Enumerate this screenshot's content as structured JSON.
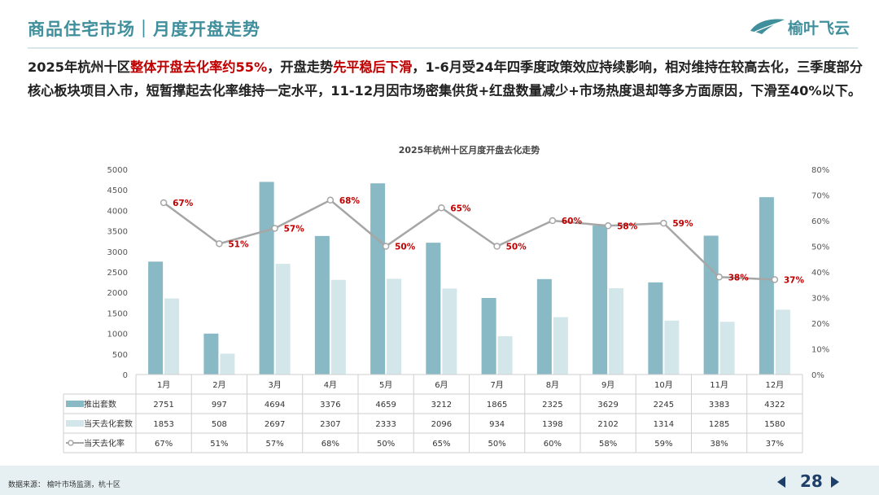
{
  "header": {
    "title": "商品住宅市场｜月度开盘走势",
    "logo_text": "榆叶飞云"
  },
  "summary": {
    "part1": "2025年杭州十区",
    "highlight1": "整体开盘去化率约55%",
    "part2": "，开盘走势",
    "highlight2": "先平稳后下滑",
    "part3": "，1-6月受24年四季度政策效应持续影响，相对维持在较高去化，三季度部分核心板块项目入市，短暂撑起去化率维持一定水平，11-12月因市场密集供货+红盘数量减少+市场热度退却等多方面原因，下滑至40%以下。"
  },
  "colors": {
    "accent": "#3f8f9c",
    "bar_supply": "#88b9c4",
    "bar_sold": "#d3e6ea",
    "line": "#a6a6a6",
    "label_red": "#c00000"
  },
  "chart_data": {
    "type": "bar",
    "title": "2025年杭州十区月度开盘去化走势",
    "categories": [
      "1月",
      "2月",
      "3月",
      "4月",
      "5月",
      "6月",
      "7月",
      "8月",
      "9月",
      "10月",
      "11月",
      "12月"
    ],
    "series": [
      {
        "name": "推出套数",
        "kind": "bar",
        "axis": "left",
        "values": [
          2751,
          997,
          4694,
          3376,
          4659,
          3212,
          1865,
          2325,
          3629,
          2245,
          3383,
          4322
        ]
      },
      {
        "name": "当天去化套数",
        "kind": "bar",
        "axis": "left",
        "values": [
          1853,
          508,
          2697,
          2307,
          2333,
          2096,
          934,
          1398,
          2102,
          1314,
          1285,
          1580
        ]
      },
      {
        "name": "当天去化率",
        "kind": "line",
        "axis": "right",
        "values": [
          67,
          51,
          57,
          68,
          50,
          65,
          50,
          60,
          58,
          59,
          38,
          37
        ],
        "labels": [
          "67%",
          "51%",
          "57%",
          "68%",
          "50%",
          "65%",
          "50%",
          "60%",
          "58%",
          "59%",
          "38%",
          "37%"
        ]
      }
    ],
    "ylim_left": [
      0,
      5000
    ],
    "yticks_left": [
      "0",
      "500",
      "1000",
      "1500",
      "2000",
      "2500",
      "3000",
      "3500",
      "4000",
      "4500",
      "5000"
    ],
    "ylim_right": [
      0,
      80
    ],
    "yticks_right": [
      "0%",
      "10%",
      "20%",
      "30%",
      "40%",
      "50%",
      "60%",
      "70%",
      "80%"
    ],
    "table_rows": [
      {
        "name": "推出套数",
        "cells": [
          "2751",
          "997",
          "4694",
          "3376",
          "4659",
          "3212",
          "1865",
          "2325",
          "3629",
          "2245",
          "3383",
          "4322"
        ]
      },
      {
        "name": "当天去化套数",
        "cells": [
          "1853",
          "508",
          "2697",
          "2307",
          "2333",
          "2096",
          "934",
          "1398",
          "2102",
          "1314",
          "1285",
          "1580"
        ]
      },
      {
        "name": "当天去化率",
        "cells": [
          "67%",
          "51%",
          "57%",
          "68%",
          "50%",
          "65%",
          "50%",
          "60%",
          "58%",
          "59%",
          "38%",
          "37%"
        ]
      }
    ]
  },
  "footer": {
    "source": "数据来源： 榆叶市场监测，杭十区",
    "page_number": "28"
  }
}
